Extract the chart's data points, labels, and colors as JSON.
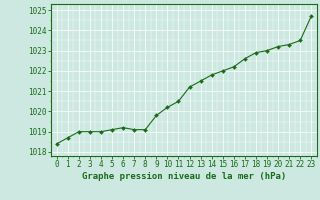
{
  "title": "Graphe pression niveau de la mer (hPa)",
  "y_values": [
    1018.4,
    1018.7,
    1019.0,
    1019.0,
    1019.0,
    1019.1,
    1019.2,
    1019.1,
    1019.1,
    1019.8,
    1020.2,
    1020.5,
    1021.2,
    1021.5,
    1021.8,
    1022.0,
    1022.2,
    1022.6,
    1022.9,
    1023.0,
    1023.2,
    1023.3,
    1023.5,
    1024.7
  ],
  "x_values": [
    0,
    1,
    2,
    3,
    4,
    5,
    6,
    7,
    8,
    9,
    10,
    11,
    12,
    13,
    14,
    15,
    16,
    17,
    18,
    19,
    20,
    21,
    22,
    23
  ],
  "xlim": [
    -0.5,
    23.5
  ],
  "ylim": [
    1017.8,
    1025.3
  ],
  "yticks": [
    1018,
    1019,
    1020,
    1021,
    1022,
    1023,
    1024,
    1025
  ],
  "xtick_labels": [
    "0",
    "1",
    "2",
    "3",
    "4",
    "5",
    "6",
    "7",
    "8",
    "9",
    "10",
    "11",
    "12",
    "13",
    "14",
    "15",
    "16",
    "17",
    "18",
    "19",
    "20",
    "21",
    "22",
    "23"
  ],
  "line_color": "#1a6b1a",
  "marker_color": "#1a6b1a",
  "bg_color": "#cce8e0",
  "grid_color": "#ffffff",
  "title_color": "#1a6b1a",
  "title_fontsize": 6.5,
  "tick_fontsize": 5.5,
  "linewidth": 0.8,
  "markersize": 2.0
}
